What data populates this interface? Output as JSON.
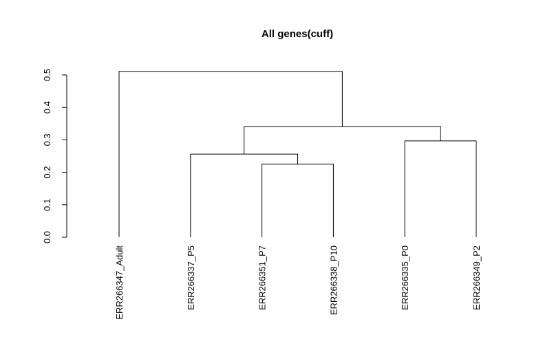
{
  "chart_data": {
    "type": "dendrogram",
    "title": "All genes(cuff)",
    "labels": [
      "ERR266347_Adult",
      "ERR266337_P5",
      "ERR266351_P7",
      "ERR266338_P10",
      "ERR266335_P0",
      "ERR266349_P2"
    ],
    "merges": [
      {
        "left": {
          "leaf": 2
        },
        "right": {
          "leaf": 3
        },
        "height": 0.225
      },
      {
        "left": {
          "leaf": 1
        },
        "right": {
          "merge": 0
        },
        "height": 0.256
      },
      {
        "left": {
          "leaf": 4
        },
        "right": {
          "leaf": 5
        },
        "height": 0.297
      },
      {
        "left": {
          "merge": 1
        },
        "right": {
          "merge": 2
        },
        "height": 0.341
      },
      {
        "left": {
          "leaf": 0
        },
        "right": {
          "merge": 3
        },
        "height": 0.511
      }
    ],
    "ylim": [
      0,
      0.5
    ],
    "yticks": [
      {
        "value": 0,
        "label": "0.0"
      },
      0.1,
      0.2,
      0.3,
      0.4,
      0.5
    ]
  }
}
